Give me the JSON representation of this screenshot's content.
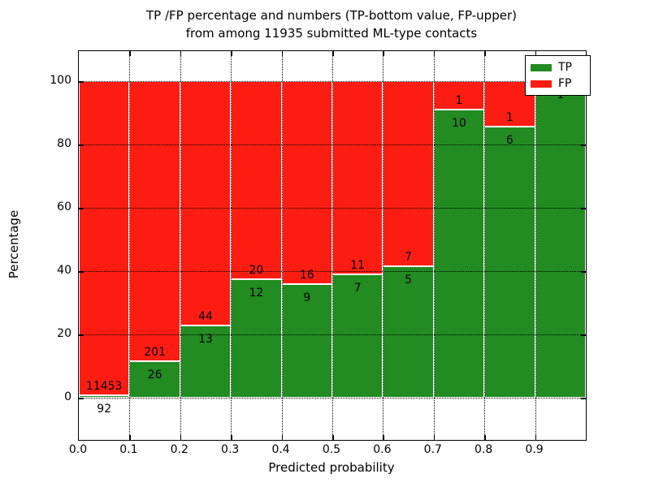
{
  "title": {
    "line1": "TP /FP percentage and numbers (TP-bottom value, FP-upper)",
    "line2": "from among 11935 submitted ML-type contacts"
  },
  "axes": {
    "x_label": "Predicted probability",
    "y_label": "Percentage",
    "x_tick_labels": [
      "0.0",
      "0.1",
      "0.2",
      "0.3",
      "0.4",
      "0.5",
      "0.6",
      "0.7",
      "0.8",
      "0.9"
    ],
    "y_tick_labels": [
      "0",
      "20",
      "40",
      "60",
      "80",
      "100"
    ],
    "y_tick_values": [
      0,
      20,
      40,
      60,
      80,
      100
    ]
  },
  "legend": {
    "items": [
      {
        "label": "TP",
        "color": "#228b22"
      },
      {
        "label": "FP",
        "color": "#fc1d12"
      }
    ]
  },
  "colors": {
    "tp_green": "#228b22",
    "fp_red": "#fc1d12",
    "grid": "#000000",
    "background": "#ffffff"
  },
  "chart_data": {
    "type": "bar",
    "stacked": true,
    "normalized_to_percent": true,
    "title": "TP /FP percentage and numbers (TP-bottom value, FP-upper) from among 11935 submitted ML-type contacts",
    "xlabel": "Predicted probability",
    "ylabel": "Percentage",
    "total_contacts": 11935,
    "bin_edges": [
      0.0,
      0.1,
      0.2,
      0.3,
      0.4,
      0.5,
      0.6,
      0.7,
      0.8,
      0.9,
      1.0
    ],
    "categories": [
      "0.0-0.1",
      "0.1-0.2",
      "0.2-0.3",
      "0.3-0.4",
      "0.4-0.5",
      "0.5-0.6",
      "0.6-0.7",
      "0.7-0.8",
      "0.8-0.9",
      "0.9-1.0"
    ],
    "series": [
      {
        "name": "TP",
        "values": [
          92,
          26,
          13,
          12,
          9,
          7,
          5,
          10,
          6,
          1
        ]
      },
      {
        "name": "FP",
        "values": [
          11453,
          201,
          44,
          20,
          16,
          11,
          7,
          1,
          1,
          0
        ]
      }
    ],
    "tp_percent": [
      0.8,
      11.5,
      22.8,
      37.5,
      36.0,
      38.9,
      41.7,
      90.9,
      85.7,
      100.0
    ],
    "ylim_percent": [
      0,
      100
    ],
    "grid": "dotted",
    "legend_position": "upper right"
  }
}
